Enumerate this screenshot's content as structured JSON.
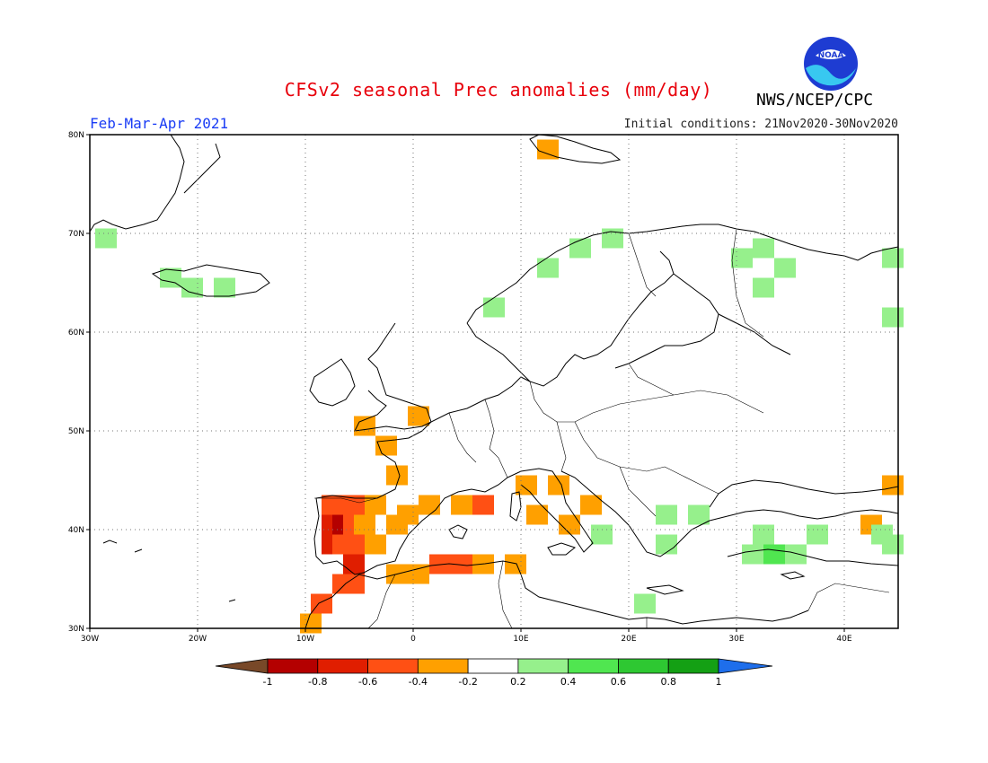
{
  "title": "CFSv2 seasonal Prec anomalies (mm/day)",
  "period": "Feb-Mar-Apr 2021",
  "initial_conditions": "Initial conditions: 21Nov2020-30Nov2020",
  "agency": "NWS/NCEP/CPC",
  "logo_text": "NOAA",
  "lat_labels": [
    "80N",
    "70N",
    "60N",
    "50N",
    "40N",
    "30N"
  ],
  "lon_labels": [
    "30W",
    "20W",
    "10W",
    "0",
    "10E",
    "20E",
    "30E",
    "40E"
  ],
  "colorbar": {
    "tick_labels": [
      "-1",
      "-0.8",
      "-0.6",
      "-0.4",
      "-0.2",
      "0.2",
      "0.4",
      "0.6",
      "0.8",
      "1"
    ],
    "colors": [
      "#784828",
      "#b40000",
      "#e01e00",
      "#ff5014",
      "#ffa000",
      "#ffffff",
      "#96f08c",
      "#50e650",
      "#2ec832",
      "#14a014",
      "#1e6eeb"
    ]
  },
  "anomaly_cells": [
    {
      "lon": -7.5,
      "lat": 42.5,
      "value": -0.5
    },
    {
      "lon": -5.5,
      "lat": 42.5,
      "value": -0.5
    },
    {
      "lon": -3.5,
      "lat": 42.5,
      "value": -0.3
    },
    {
      "lon": -7.5,
      "lat": 40.5,
      "value": -0.7
    },
    {
      "lon": -6.5,
      "lat": 40.5,
      "value": -0.9
    },
    {
      "lon": -5.5,
      "lat": 40.5,
      "value": -0.5
    },
    {
      "lon": -4.5,
      "lat": 40.5,
      "value": -0.3
    },
    {
      "lon": -7.5,
      "lat": 38.5,
      "value": -0.7
    },
    {
      "lon": -6.5,
      "lat": 38.5,
      "value": -0.5
    },
    {
      "lon": -5.5,
      "lat": 38.5,
      "value": -0.5
    },
    {
      "lon": -3.5,
      "lat": 38.5,
      "value": -0.3
    },
    {
      "lon": -1.5,
      "lat": 40.5,
      "value": -0.3
    },
    {
      "lon": -0.5,
      "lat": 41.5,
      "value": -0.3
    },
    {
      "lon": -5.5,
      "lat": 36.5,
      "value": -0.7
    },
    {
      "lon": -6.5,
      "lat": 34.5,
      "value": -0.5
    },
    {
      "lon": -5.5,
      "lat": 34.5,
      "value": -0.5
    },
    {
      "lon": -8.5,
      "lat": 32.5,
      "value": -0.5
    },
    {
      "lon": -9.5,
      "lat": 30.5,
      "value": -0.3
    },
    {
      "lon": -1.5,
      "lat": 35.5,
      "value": -0.3
    },
    {
      "lon": 0.5,
      "lat": 35.5,
      "value": -0.3
    },
    {
      "lon": 2.5,
      "lat": 36.5,
      "value": -0.5
    },
    {
      "lon": 4.5,
      "lat": 36.5,
      "value": -0.5
    },
    {
      "lon": 6.5,
      "lat": 36.5,
      "value": -0.3
    },
    {
      "lon": 9.5,
      "lat": 36.5,
      "value": -0.3
    },
    {
      "lon": 1.5,
      "lat": 42.5,
      "value": -0.3
    },
    {
      "lon": 4.5,
      "lat": 42.5,
      "value": -0.3
    },
    {
      "lon": 6.5,
      "lat": 42.5,
      "value": -0.5
    },
    {
      "lon": 10.5,
      "lat": 44.5,
      "value": -0.3
    },
    {
      "lon": 13.5,
      "lat": 44.5,
      "value": -0.3
    },
    {
      "lon": 11.5,
      "lat": 41.5,
      "value": -0.3
    },
    {
      "lon": 14.5,
      "lat": 40.5,
      "value": -0.3
    },
    {
      "lon": 16.5,
      "lat": 42.5,
      "value": -0.3
    },
    {
      "lon": -1.5,
      "lat": 45.5,
      "value": -0.3
    },
    {
      "lon": -2.5,
      "lat": 48.5,
      "value": -0.3
    },
    {
      "lon": -4.5,
      "lat": 50.5,
      "value": -0.3
    },
    {
      "lon": 0.5,
      "lat": 51.5,
      "value": -0.3
    },
    {
      "lon": 42.5,
      "lat": 40.5,
      "value": -0.3
    },
    {
      "lon": 44.5,
      "lat": 44.5,
      "value": -0.3
    },
    {
      "lon": 12.5,
      "lat": 78.5,
      "value": -0.3
    },
    {
      "lon": 23.5,
      "lat": 41.5,
      "value": 0.3
    },
    {
      "lon": 26.5,
      "lat": 41.5,
      "value": 0.3
    },
    {
      "lon": 23.5,
      "lat": 38.5,
      "value": 0.3
    },
    {
      "lon": 31.5,
      "lat": 37.5,
      "value": 0.3
    },
    {
      "lon": 33.5,
      "lat": 37.5,
      "value": 0.5
    },
    {
      "lon": 35.5,
      "lat": 37.5,
      "value": 0.3
    },
    {
      "lon": 32.5,
      "lat": 39.5,
      "value": 0.3
    },
    {
      "lon": 37.5,
      "lat": 39.5,
      "value": 0.3
    },
    {
      "lon": 43.5,
      "lat": 39.5,
      "value": 0.3
    },
    {
      "lon": 44.5,
      "lat": 38.5,
      "value": 0.3
    },
    {
      "lon": 21.5,
      "lat": 32.5,
      "value": 0.3
    },
    {
      "lon": 17.5,
      "lat": 39.5,
      "value": 0.3
    },
    {
      "lon": 32.5,
      "lat": 68.5,
      "value": 0.3
    },
    {
      "lon": 30.5,
      "lat": 67.5,
      "value": 0.3
    },
    {
      "lon": 34.5,
      "lat": 66.5,
      "value": 0.3
    },
    {
      "lon": 32.5,
      "lat": 64.5,
      "value": 0.3
    },
    {
      "lon": 44.5,
      "lat": 61.5,
      "value": 0.3
    },
    {
      "lon": 44.5,
      "lat": 67.5,
      "value": 0.3
    },
    {
      "lon": 15.5,
      "lat": 68.5,
      "value": 0.3
    },
    {
      "lon": 18.5,
      "lat": 69.5,
      "value": 0.3
    },
    {
      "lon": 12.5,
      "lat": 66.5,
      "value": 0.3
    },
    {
      "lon": 7.5,
      "lat": 62.5,
      "value": 0.3
    },
    {
      "lon": -20.5,
      "lat": 64.5,
      "value": 0.3
    },
    {
      "lon": -17.5,
      "lat": 64.5,
      "value": 0.3
    },
    {
      "lon": -28.5,
      "lat": 69.5,
      "value": 0.3
    },
    {
      "lon": -22.5,
      "lat": 65.5,
      "value": 0.3
    }
  ]
}
